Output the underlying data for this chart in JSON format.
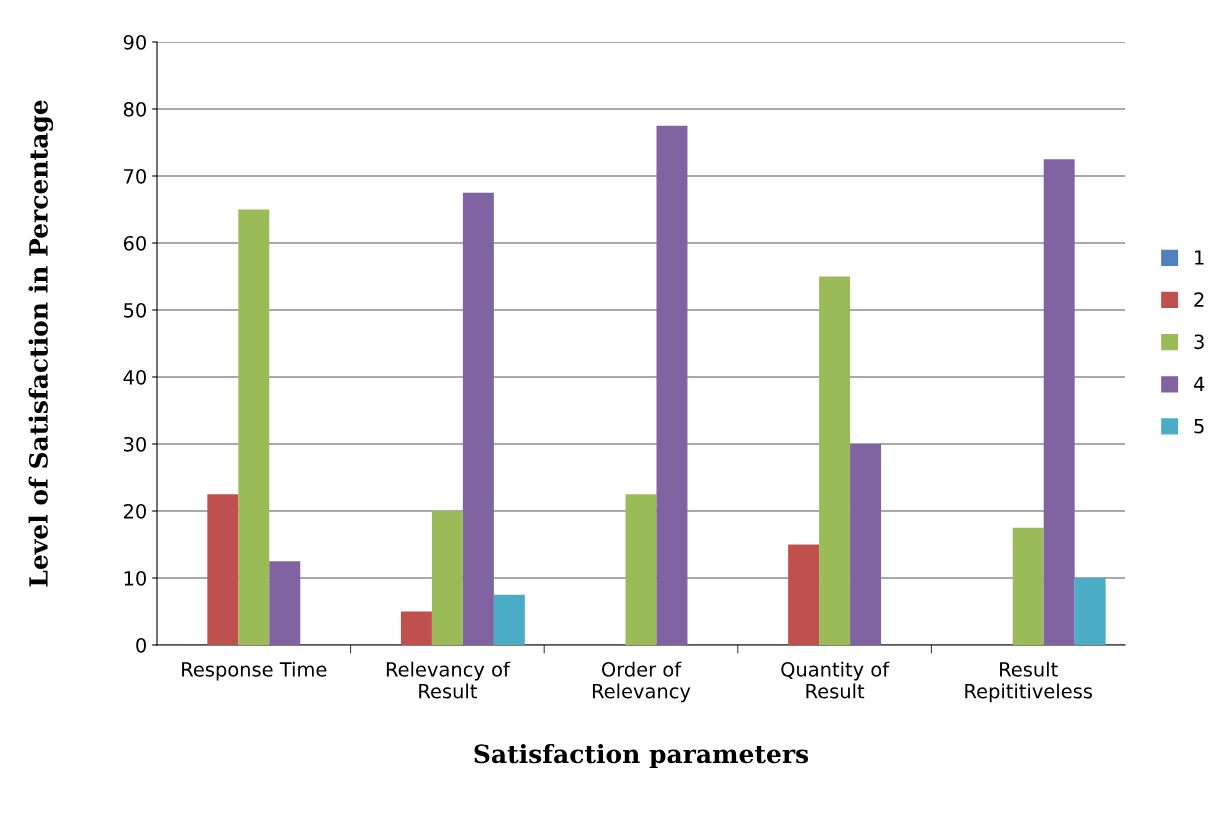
{
  "chart_data": {
    "type": "bar",
    "categories": [
      "Response Time",
      "Relevancy of\nResult",
      "Order of\nRelevancy",
      "Quantity of\nResult",
      "Result\nRepititiveless"
    ],
    "series": [
      {
        "name": "1",
        "color": "#4f81bd",
        "values": [
          0,
          0,
          0,
          0,
          0
        ]
      },
      {
        "name": "2",
        "color": "#c0504d",
        "values": [
          22.5,
          5,
          0,
          15,
          0
        ]
      },
      {
        "name": "3",
        "color": "#9bbb59",
        "values": [
          65,
          20,
          22.5,
          55,
          17.5
        ]
      },
      {
        "name": "4",
        "color": "#8064a2",
        "values": [
          12.5,
          67.5,
          77.5,
          30,
          72.5
        ]
      },
      {
        "name": "5",
        "color": "#4bacc6",
        "values": [
          0,
          7.5,
          0,
          0,
          10
        ]
      }
    ],
    "xlabel": "Satisfaction parameters",
    "ylabel": "Level of Satisfaction in Percentage",
    "ylim": [
      0,
      90
    ],
    "yticks": [
      0,
      10,
      20,
      30,
      40,
      50,
      60,
      70,
      80,
      90
    ],
    "grid": "y",
    "legend": "right"
  }
}
